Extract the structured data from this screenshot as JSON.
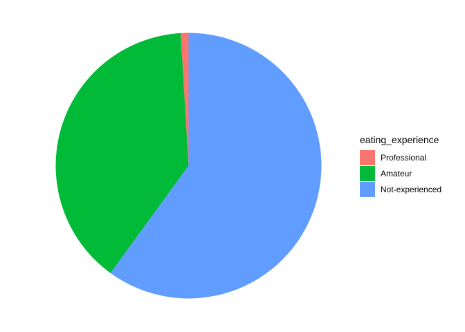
{
  "chart_data": {
    "type": "pie",
    "title": "",
    "legend": {
      "title": "eating_experience",
      "placement": "right"
    },
    "categories": [
      "Professional",
      "Amateur",
      "Not-experienced"
    ],
    "values": [
      0.0095,
      0.3905,
      0.6
    ],
    "unit": "proportion",
    "colors": [
      "#F8766D",
      "#00BA38",
      "#619CFF"
    ],
    "start": "top",
    "direction": "counterclockwise",
    "grid": false
  }
}
